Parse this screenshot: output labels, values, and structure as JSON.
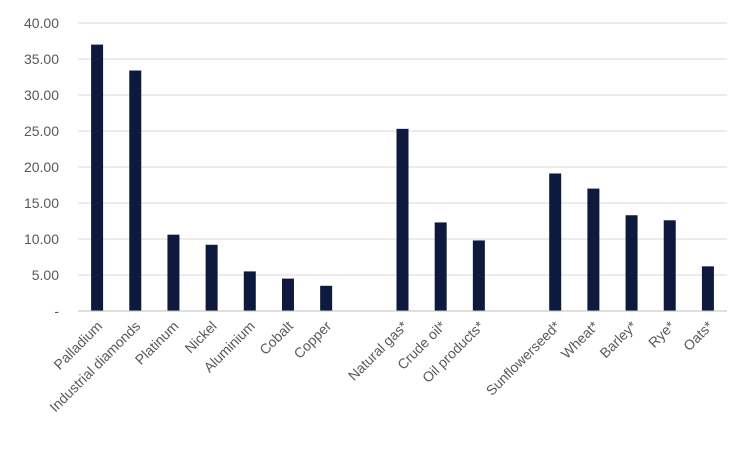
{
  "chart_data": {
    "type": "bar",
    "categories": [
      "Palladium",
      "Industrial diamonds",
      "Platinum",
      "Nickel",
      "Aluminium",
      "Cobalt",
      "Copper",
      "",
      "Natural gas*",
      "Crude oil*",
      "Oil products*",
      "",
      "Sunflowerseed*",
      "Wheat*",
      "Barley*",
      "Rye*",
      "Oats*"
    ],
    "values": [
      37.0,
      33.4,
      10.6,
      9.2,
      5.5,
      4.5,
      3.5,
      null,
      25.3,
      12.3,
      9.8,
      null,
      19.1,
      17.0,
      13.3,
      12.6,
      6.2
    ],
    "y_ticks": [
      "-",
      "5.00",
      "10.00",
      "15.00",
      "20.00",
      "25.00",
      "30.00",
      "35.00",
      "40.00"
    ],
    "ylim": [
      0,
      40
    ],
    "title": "",
    "xlabel": "",
    "ylabel": "",
    "grid": true,
    "bar_color": "#0e1a3d"
  }
}
